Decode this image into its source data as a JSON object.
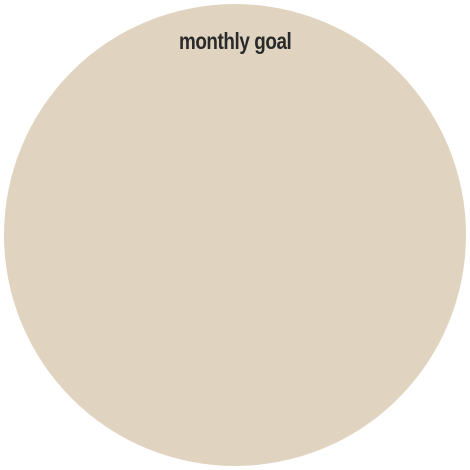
{
  "widget": {
    "title": "monthly goal",
    "background_color": "#e0d4c0",
    "text_color": "#2a2a2a"
  }
}
